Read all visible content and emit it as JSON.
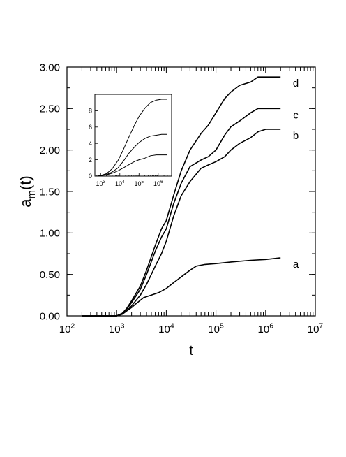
{
  "chart_data": [
    {
      "type": "line",
      "title": "",
      "xlabel": "t",
      "ylabel": "a",
      "ylabel_sub": "m",
      "ylabel_suffix": "(t)",
      "xscale": "log",
      "xlim": [
        100,
        10000000
      ],
      "ylim": [
        0,
        3
      ],
      "x_tick_labels": [
        {
          "base": "10",
          "exp": "2"
        },
        {
          "base": "10",
          "exp": "3"
        },
        {
          "base": "10",
          "exp": "4"
        },
        {
          "base": "10",
          "exp": "5"
        },
        {
          "base": "10",
          "exp": "6"
        },
        {
          "base": "10",
          "exp": "7"
        }
      ],
      "y_tick_labels": [
        "0.00",
        "0.50",
        "1.00",
        "1.50",
        "2.00",
        "2.50",
        "3.00"
      ],
      "grid": false,
      "series": [
        {
          "name": "a",
          "x": [
            200,
            1000,
            1300,
            1600,
            2000,
            2500,
            3500,
            5000,
            7000,
            10000,
            14000,
            20000,
            30000,
            40000,
            60000,
            100000,
            200000,
            500000,
            1000000,
            2000000
          ],
          "y": [
            0,
            0,
            0.02,
            0.06,
            0.1,
            0.15,
            0.22,
            0.25,
            0.28,
            0.33,
            0.4,
            0.47,
            0.55,
            0.6,
            0.62,
            0.63,
            0.65,
            0.67,
            0.68,
            0.7
          ]
        },
        {
          "name": "b",
          "x": [
            200,
            1000,
            1300,
            1600,
            2000,
            3000,
            4000,
            6000,
            8000,
            10000,
            14000,
            20000,
            30000,
            50000,
            70000,
            100000,
            150000,
            200000,
            300000,
            500000,
            700000,
            1000000,
            2000000
          ],
          "y": [
            0,
            0,
            0.02,
            0.06,
            0.12,
            0.25,
            0.38,
            0.6,
            0.75,
            0.9,
            1.2,
            1.45,
            1.62,
            1.78,
            1.82,
            1.86,
            1.92,
            2.0,
            2.08,
            2.15,
            2.22,
            2.25,
            2.25
          ]
        },
        {
          "name": "c",
          "x": [
            200,
            1000,
            1300,
            1600,
            2000,
            3000,
            4000,
            6000,
            8000,
            10000,
            14000,
            20000,
            30000,
            50000,
            70000,
            100000,
            150000,
            200000,
            300000,
            500000,
            700000,
            1000000,
            2000000
          ],
          "y": [
            0,
            0,
            0.03,
            0.08,
            0.16,
            0.32,
            0.5,
            0.78,
            0.95,
            1.05,
            1.35,
            1.6,
            1.8,
            1.88,
            1.92,
            2.0,
            2.18,
            2.28,
            2.35,
            2.45,
            2.5,
            2.5,
            2.5
          ]
        },
        {
          "name": "d",
          "x": [
            200,
            1000,
            1300,
            1600,
            2000,
            3000,
            4000,
            6000,
            8000,
            10000,
            14000,
            20000,
            30000,
            50000,
            70000,
            100000,
            150000,
            200000,
            300000,
            500000,
            700000,
            1000000,
            2000000
          ],
          "y": [
            0,
            0,
            0.03,
            0.09,
            0.18,
            0.36,
            0.55,
            0.85,
            1.05,
            1.15,
            1.45,
            1.75,
            2.0,
            2.2,
            2.3,
            2.45,
            2.62,
            2.7,
            2.78,
            2.82,
            2.88,
            2.88,
            2.88
          ]
        }
      ]
    },
    {
      "type": "line",
      "title": "",
      "xscale": "log",
      "xlim": [
        500,
        5000000
      ],
      "ylim": [
        0,
        10
      ],
      "x_tick_labels": [
        {
          "base": "10",
          "exp": "3"
        },
        {
          "base": "10",
          "exp": "4"
        },
        {
          "base": "10",
          "exp": "5"
        },
        {
          "base": "10",
          "exp": "6"
        }
      ],
      "y_tick_labels": [
        "0",
        "2",
        "4",
        "6",
        "8"
      ],
      "series": [
        {
          "x": [
            700,
            1000,
            2000,
            4000,
            8000,
            15000,
            30000,
            60000,
            100000,
            200000,
            400000,
            800000,
            1500000,
            3000000
          ],
          "y": [
            0,
            0.05,
            0.15,
            0.35,
            0.65,
            1.0,
            1.4,
            1.8,
            2.0,
            2.2,
            2.5,
            2.6,
            2.6,
            2.6
          ]
        },
        {
          "x": [
            700,
            1000,
            2000,
            4000,
            8000,
            15000,
            30000,
            60000,
            100000,
            200000,
            400000,
            800000,
            1500000,
            3000000
          ],
          "y": [
            0,
            0.05,
            0.2,
            0.5,
            1.0,
            1.8,
            2.8,
            3.6,
            4.1,
            4.6,
            4.9,
            5.0,
            5.1,
            5.1
          ]
        },
        {
          "x": [
            700,
            1000,
            2000,
            4000,
            8000,
            15000,
            30000,
            60000,
            100000,
            200000,
            400000,
            800000,
            1500000,
            3000000
          ],
          "y": [
            0,
            0.08,
            0.3,
            0.9,
            1.9,
            3.2,
            4.8,
            6.3,
            7.3,
            8.3,
            9.0,
            9.3,
            9.4,
            9.4
          ]
        }
      ]
    }
  ]
}
